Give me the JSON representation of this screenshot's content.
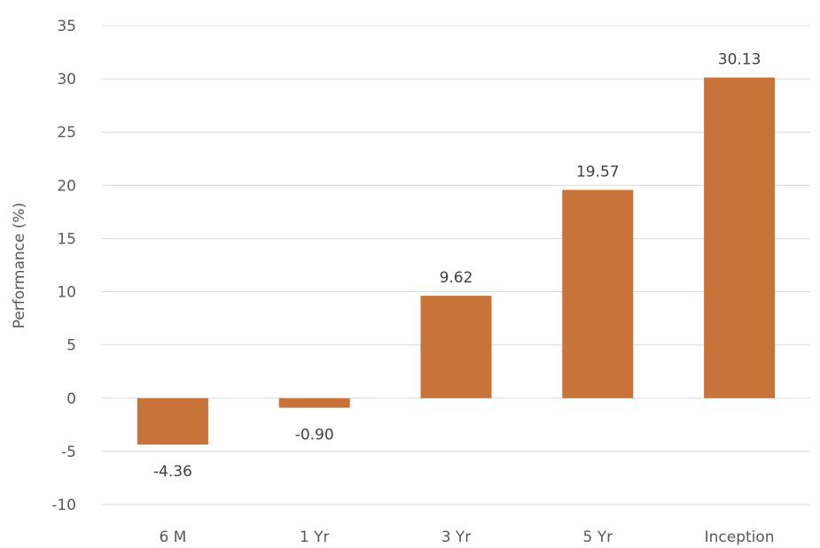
{
  "chart_data": {
    "type": "bar",
    "categories": [
      "6 M",
      "1 Yr",
      "3 Yr",
      "5 Yr",
      "Inception"
    ],
    "values": [
      -4.36,
      -0.9,
      9.62,
      19.57,
      30.13
    ],
    "data_labels": [
      "-4.36",
      "-0.90",
      "9.62",
      "19.57",
      "30.13"
    ],
    "ylabel": "Performance (%)",
    "ylim": [
      -10,
      35
    ],
    "yticks": [
      35,
      30,
      25,
      20,
      15,
      10,
      5,
      0,
      -5,
      -10
    ],
    "grid": true,
    "bar_color": "#C8733A",
    "grid_color": "#D9D9D9"
  }
}
